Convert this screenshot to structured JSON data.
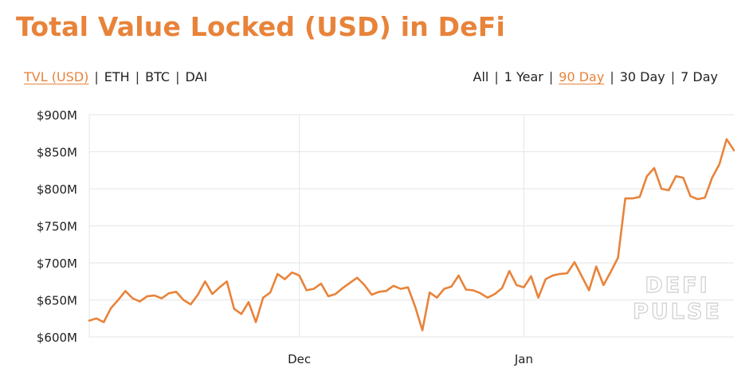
{
  "title": "Total Value Locked (USD) in DeFi",
  "metric_tabs": [
    {
      "label": "TVL (USD)",
      "active": true
    },
    {
      "label": "ETH",
      "active": false
    },
    {
      "label": "BTC",
      "active": false
    },
    {
      "label": "DAI",
      "active": false
    }
  ],
  "range_tabs": [
    {
      "label": "All",
      "active": false
    },
    {
      "label": "1 Year",
      "active": false
    },
    {
      "label": "90 Day",
      "active": true
    },
    {
      "label": "30 Day",
      "active": false
    },
    {
      "label": "7 Day",
      "active": false
    }
  ],
  "watermark": [
    "DEFI",
    "PULSE"
  ],
  "colors": {
    "accent": "#e8833a",
    "grid": "#e6e6e6",
    "text": "#222222"
  },
  "chart_data": {
    "type": "line",
    "ylim": [
      600,
      900
    ],
    "y_ticks": [
      600,
      650,
      700,
      750,
      800,
      850,
      900
    ],
    "y_tick_labels": [
      "$600M",
      "$650M",
      "$700M",
      "$750M",
      "$800M",
      "$850M",
      "$900M"
    ],
    "x_ticks": [
      {
        "label": "Dec",
        "x": 29
      },
      {
        "label": "Jan",
        "x": 60
      }
    ],
    "grid": true,
    "series": [
      {
        "values": [
          622,
          625,
          620,
          639,
          650,
          662,
          652,
          648,
          655,
          656,
          652,
          659,
          661,
          650,
          644,
          657,
          675,
          658,
          667,
          675,
          638,
          631,
          647,
          620,
          653,
          660,
          685,
          678,
          687,
          683,
          663,
          665,
          672,
          655,
          658,
          666,
          673,
          680,
          670,
          657,
          661,
          662,
          669,
          665,
          667,
          641,
          609,
          660,
          653,
          665,
          668,
          683,
          664,
          663,
          659,
          653,
          658,
          666,
          689,
          670,
          667,
          682,
          653,
          678,
          683,
          685,
          686,
          701,
          682,
          663,
          695,
          670,
          688,
          707,
          787,
          787,
          789,
          817,
          828,
          800,
          798,
          817,
          815,
          790,
          786,
          788,
          815,
          833,
          867,
          852
        ]
      }
    ]
  }
}
